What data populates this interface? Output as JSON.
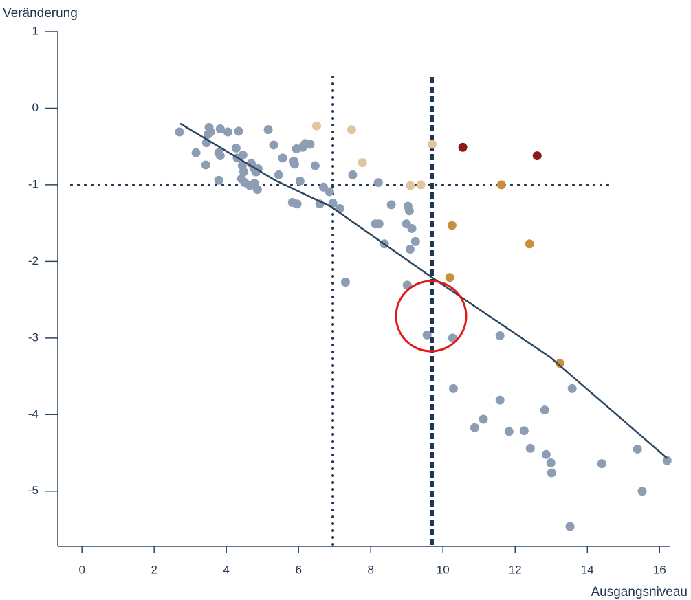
{
  "chart_data": {
    "type": "scatter",
    "y_label": "Veränderung",
    "x_label": "Ausgangsniveau",
    "xlim": [
      -0.67,
      16.3
    ],
    "ylim": [
      -5.72,
      1
    ],
    "xticks": [
      0,
      2,
      4,
      6,
      8,
      10,
      12,
      14,
      16
    ],
    "yticks": [
      1,
      0,
      -1,
      -2,
      -3,
      -4,
      -5
    ],
    "series": [
      {
        "color": "#8d9db4",
        "x": [
          2.7,
          3.16,
          3.43,
          3.45,
          3.49,
          3.52,
          3.56,
          3.83,
          4.04,
          4.34,
          3.79,
          3.83,
          3.79,
          4.27,
          4.3,
          4.46,
          4.44,
          4.48,
          4.42,
          4.51,
          4.65,
          4.69,
          4.76,
          4.82,
          4.88,
          4.86,
          4.78,
          5.16,
          5.31,
          5.56,
          5.45,
          5.87,
          5.89,
          6.04,
          5.94,
          6.11,
          6.19,
          6.32,
          6.15,
          6.46,
          5.83,
          5.96,
          6.59,
          6.69,
          6.86,
          6.95,
          7.14,
          7.5,
          8.21,
          8.57,
          8.13,
          8.23,
          8.38,
          8.99,
          9.03,
          9.07,
          9.14,
          9.24,
          9.09,
          7.3,
          9.01,
          9.56,
          10.27,
          10.29,
          10.88,
          11.12,
          11.58,
          11.58,
          11.83,
          12.25,
          12.42,
          12.82,
          12.86,
          12.99,
          13.01,
          13.58,
          14.4,
          15.39,
          15.52,
          13.52,
          16.21
        ],
        "values": [
          -0.31,
          -0.58,
          -0.74,
          -0.45,
          -0.34,
          -0.25,
          -0.31,
          -0.27,
          -0.31,
          -0.3,
          -0.58,
          -0.62,
          -0.94,
          -0.52,
          -0.65,
          -0.61,
          -0.75,
          -0.83,
          -0.92,
          -0.97,
          -1.01,
          -0.72,
          -0.78,
          -0.83,
          -0.79,
          -1.06,
          -0.98,
          -0.28,
          -0.48,
          -0.65,
          -0.87,
          -0.69,
          -0.73,
          -0.95,
          -0.53,
          -0.51,
          -0.46,
          -0.47,
          -0.49,
          -0.75,
          -1.23,
          -1.25,
          -1.25,
          -1.03,
          -1.09,
          -1.24,
          -1.31,
          -0.87,
          -0.97,
          -1.26,
          -1.51,
          -1.51,
          -1.77,
          -1.51,
          -1.28,
          -1.34,
          -1.57,
          -1.74,
          -1.84,
          -2.27,
          -2.31,
          -2.96,
          -3.0,
          -3.66,
          -4.17,
          -4.06,
          -3.81,
          -2.97,
          -4.22,
          -4.21,
          -4.44,
          -3.94,
          -4.52,
          -4.63,
          -4.76,
          -3.66,
          -4.64,
          -4.45,
          -5.0,
          -5.46,
          -4.6
        ]
      },
      {
        "color": "#e3c59c",
        "x": [
          6.5,
          7.47,
          7.77,
          9.1,
          9.39,
          9.7
        ],
        "values": [
          -0.23,
          -0.28,
          -0.71,
          -1.01,
          -1.0,
          -0.47
        ]
      },
      {
        "color": "#c98f3f",
        "x": [
          11.62,
          10.25,
          12.4,
          10.19,
          13.24
        ],
        "values": [
          -1.0,
          -1.53,
          -1.77,
          -2.21,
          -3.33
        ]
      },
      {
        "color": "#8b1a1a",
        "x": [
          10.55,
          12.61
        ],
        "values": [
          -0.51,
          -0.62
        ]
      }
    ],
    "trend_line": {
      "color": "#2c4560",
      "x": [
        2.72,
        5.35,
        6.88,
        9.73,
        12.97,
        16.21
      ],
      "values": [
        -0.2,
        -0.94,
        -1.28,
        -2.22,
        -3.25,
        -4.57
      ]
    },
    "vlines": [
      {
        "value": 6.95,
        "style": "dotted"
      },
      {
        "value": 9.7,
        "style": "dashed"
      }
    ],
    "hlines": [
      {
        "value": -1,
        "style": "dotted"
      }
    ]
  }
}
